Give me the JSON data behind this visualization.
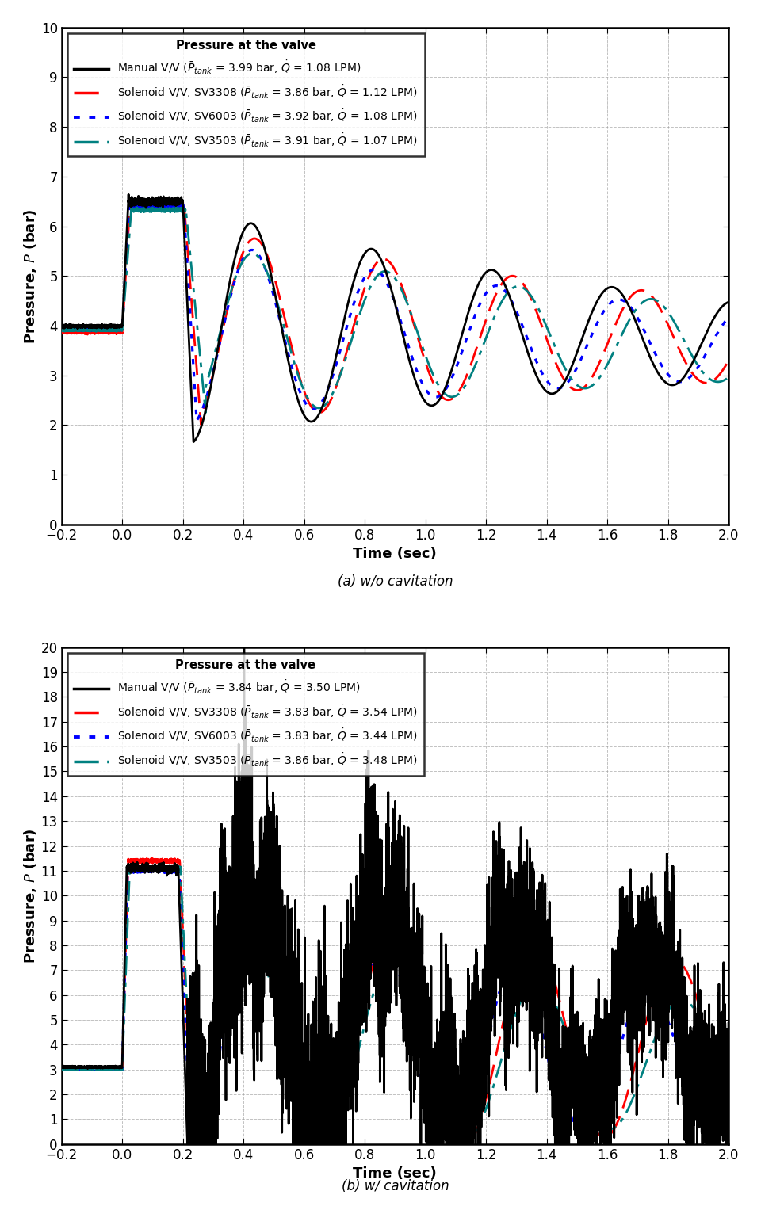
{
  "subplot_a": {
    "title": "Pressure at the valve",
    "xlabel": "Time (sec)",
    "ylabel": "Pressure, $P$ (bar)",
    "caption": "(a) w/o cavitation",
    "xlim": [
      -0.2,
      2.0
    ],
    "ylim": [
      0,
      10
    ],
    "yticks": [
      0,
      1,
      2,
      3,
      4,
      5,
      6,
      7,
      8,
      9,
      10
    ],
    "xticks": [
      -0.2,
      0.0,
      0.2,
      0.4,
      0.6,
      0.8,
      1.0,
      1.2,
      1.4,
      1.6,
      1.8,
      2.0
    ],
    "legend": [
      {
        "label": "Manual V/V ($\\bar{P}_{tank}$ = 3.99 bar, $\\dot{Q}$ = 1.08 LPM)",
        "color": "black",
        "ls": "-"
      },
      {
        "label": "Solenoid V/V, SV3308 ($\\bar{P}_{tank}$ = 3.86 bar, $\\dot{Q}$ = 1.12 LPM)",
        "color": "red",
        "ls": "--"
      },
      {
        "label": "Solenoid V/V, SV6003 ($\\bar{P}_{tank}$ = 3.92 bar, $\\dot{Q}$ = 1.08 LPM)",
        "color": "blue",
        "ls": ":"
      },
      {
        "label": "Solenoid V/V, SV3503 ($\\bar{P}_{tank}$ = 3.91 bar, $\\dot{Q}$ = 1.07 LPM)",
        "color": "#008080",
        "ls": "-."
      }
    ]
  },
  "subplot_b": {
    "title": "Pressure at the valve",
    "xlabel": "Time (sec)",
    "ylabel": "Pressure, $P$ (bar)",
    "caption": "(b) w/ cavitation",
    "xlim": [
      -0.2,
      2.0
    ],
    "ylim": [
      0,
      20
    ],
    "yticks": [
      0,
      1,
      2,
      3,
      4,
      5,
      6,
      7,
      8,
      9,
      10,
      11,
      12,
      13,
      14,
      15,
      16,
      17,
      18,
      19,
      20
    ],
    "xticks": [
      -0.2,
      0.0,
      0.2,
      0.4,
      0.6,
      0.8,
      1.0,
      1.2,
      1.4,
      1.6,
      1.8,
      2.0
    ],
    "legend": [
      {
        "label": "Manual V/V ($\\bar{P}_{tank}$ = 3.84 bar, $\\dot{Q}$ = 3.50 LPM)",
        "color": "black",
        "ls": "-"
      },
      {
        "label": "Solenoid V/V, SV3308 ($\\bar{P}_{tank}$ = 3.83 bar, $\\dot{Q}$ = 3.54 LPM)",
        "color": "red",
        "ls": "--"
      },
      {
        "label": "Solenoid V/V, SV6003 ($\\bar{P}_{tank}$ = 3.83 bar, $\\dot{Q}$ = 3.44 LPM)",
        "color": "blue",
        "ls": ":"
      },
      {
        "label": "Solenoid V/V, SV3503 ($\\bar{P}_{tank}$ = 3.86 bar, $\\dot{Q}$ = 3.48 LPM)",
        "color": "#008080",
        "ls": "-."
      }
    ]
  }
}
